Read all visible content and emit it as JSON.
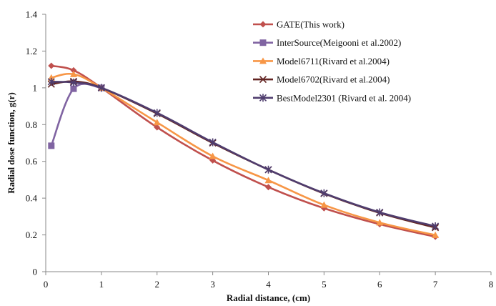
{
  "chart_data": {
    "type": "line",
    "title": "",
    "xlabel": "Radial distance, (cm)",
    "ylabel": "Radial dose function, g(r)",
    "xlim": [
      0,
      8
    ],
    "ylim": [
      0,
      1.4
    ],
    "xticks": [
      "0",
      "1",
      "2",
      "3",
      "4",
      "5",
      "6",
      "7",
      "8"
    ],
    "yticks": [
      "0",
      "0.2",
      "0.4",
      "0.6",
      "0.8",
      "1",
      "1.2",
      "1.4"
    ],
    "grid": false,
    "legend_position": "top-right",
    "series": [
      {
        "name": "GATE(This work)",
        "color": "#c0504d",
        "marker": "diamond",
        "x": [
          0.1,
          0.5,
          1,
          2,
          3,
          4,
          5,
          6,
          7
        ],
        "y": [
          1.12,
          1.095,
          1.0,
          0.785,
          0.605,
          0.46,
          0.345,
          0.258,
          0.19
        ]
      },
      {
        "name": "InterSource(Meigooni et al.2002)",
        "color": "#8064a2",
        "marker": "square",
        "x": [
          0.1,
          0.5,
          1
        ],
        "y": [
          0.685,
          0.995,
          1.0
        ]
      },
      {
        "name": "Model6711(Rivard et al.2004)",
        "color": "#f79646",
        "marker": "triangle",
        "x": [
          0.1,
          0.5,
          1,
          2,
          3,
          4,
          5,
          6,
          7
        ],
        "y": [
          1.055,
          1.074,
          1.0,
          0.812,
          0.628,
          0.497,
          0.363,
          0.267,
          0.199
        ]
      },
      {
        "name": "Model6702(Rivard et al.2004)",
        "color": "#632523",
        "marker": "x",
        "x": [
          0.1,
          0.5,
          1,
          2,
          3,
          4,
          5,
          6,
          7
        ],
        "y": [
          1.02,
          1.035,
          1.0,
          0.86,
          0.7,
          0.555,
          0.425,
          0.32,
          0.24
        ]
      },
      {
        "name": "BestModel2301 (Rivard et al. 2004)",
        "color": "#4f3d6e",
        "marker": "star",
        "x": [
          0.1,
          0.5,
          1,
          2,
          3,
          4,
          5,
          6,
          7
        ],
        "y": [
          1.033,
          1.029,
          1.0,
          0.864,
          0.704,
          0.555,
          0.427,
          0.323,
          0.247
        ]
      }
    ]
  }
}
